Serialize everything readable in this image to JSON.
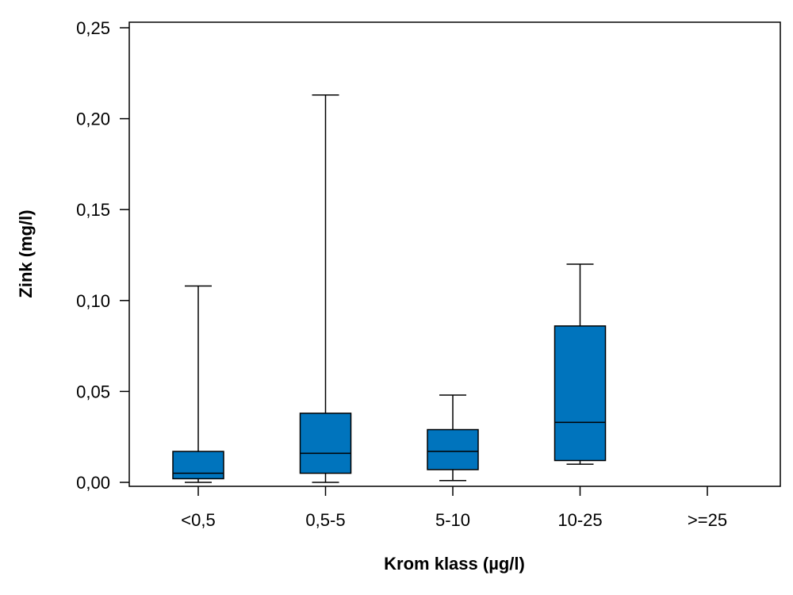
{
  "chart_data": {
    "type": "boxplot",
    "xlabel": "Krom klass (µg/l)",
    "ylabel": "Zink (mg/l)",
    "ylim": [
      0,
      0.25
    ],
    "yticks": [
      0.0,
      0.05,
      0.1,
      0.15,
      0.2,
      0.25
    ],
    "ytick_labels": [
      "0,00",
      "0,05",
      "0,10",
      "0,15",
      "0,20",
      "0,25"
    ],
    "categories": [
      "<0,5",
      "0,5-5",
      "5-10",
      "10-25",
      ">=25"
    ],
    "box_color": "#0074BD",
    "boxes": [
      {
        "category": "<0,5",
        "min": 0.0,
        "q1": 0.002,
        "median": 0.005,
        "q3": 0.017,
        "max": 0.108
      },
      {
        "category": "0,5-5",
        "min": 0.0,
        "q1": 0.005,
        "median": 0.016,
        "q3": 0.038,
        "max": 0.213
      },
      {
        "category": "5-10",
        "min": 0.001,
        "q1": 0.007,
        "median": 0.017,
        "q3": 0.029,
        "max": 0.048
      },
      {
        "category": "10-25",
        "min": 0.01,
        "q1": 0.012,
        "median": 0.033,
        "q3": 0.086,
        "max": 0.12
      },
      {
        "category": ">=25"
      }
    ],
    "grid": false,
    "legend": "none"
  }
}
